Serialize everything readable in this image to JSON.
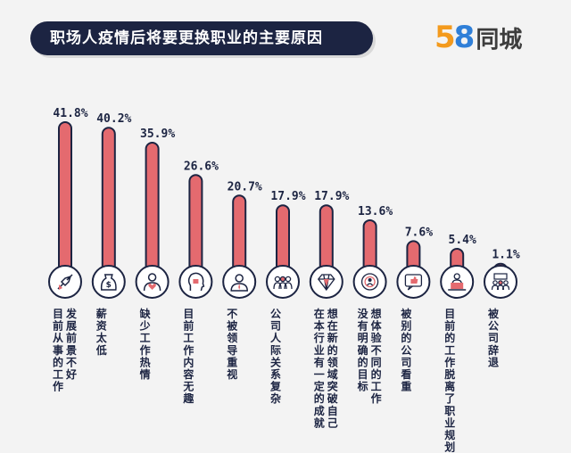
{
  "header": {
    "title": "职场人疫情后将要更换职业的主要原因"
  },
  "brand": {
    "logo_number_5": "5",
    "logo_number_8": "8",
    "logo_text": "同城"
  },
  "colors": {
    "bar": "#e46a6f",
    "outline": "#1c2442",
    "background": "#f3f3f3"
  },
  "chart_data": {
    "type": "bar",
    "title": "职场人疫情后将要更换职业的主要原因",
    "ylim": [
      0,
      45
    ],
    "unit": "%",
    "grid": false,
    "categories": [
      "发展前景不好",
      "目前从事的工作",
      "薪资太低",
      "缺少工作热情",
      "目前工作内容无趣",
      "不被领导重视",
      "公司人际关系复杂",
      "想在新的领域突破自己",
      "在本行业有一定的成就",
      "没有明确的目标",
      "想体验不同的工作",
      "被别的公司看重",
      "目前的工作脱离了职业规划",
      "被公司辞退"
    ],
    "bars": [
      {
        "value": 41.8,
        "label": "41.8%",
        "icon": "rocket-icon",
        "label_columns": [
          "发展前景不好",
          "目前从事的工作"
        ]
      },
      {
        "value": 40.2,
        "label": "40.2%",
        "icon": "money-bag-icon",
        "label_columns": [
          "薪资太低"
        ]
      },
      {
        "value": 35.9,
        "label": "35.9%",
        "icon": "person-heart-icon",
        "label_columns": [
          "缺少工作热情"
        ]
      },
      {
        "value": 26.6,
        "label": "26.6%",
        "icon": "head-lock-icon",
        "label_columns": [
          "目前工作内容无趣"
        ]
      },
      {
        "value": 20.7,
        "label": "20.7%",
        "icon": "leader-icon",
        "label_columns": [
          "不被领导重视"
        ]
      },
      {
        "value": 17.9,
        "label": "17.9%",
        "icon": "people-group-icon",
        "label_columns": [
          "公司人际关系复杂"
        ]
      },
      {
        "value": 17.9,
        "label": "17.9%",
        "icon": "diamond-icon",
        "label_columns": [
          "想在新的领域突破自己",
          "在本行业有一定的成就"
        ]
      },
      {
        "value": 13.6,
        "label": "13.6%",
        "icon": "target-person-icon",
        "label_columns": [
          "想体验不同的工作",
          "没有明确的目标"
        ]
      },
      {
        "value": 7.6,
        "label": "7.6%",
        "icon": "thumbs-up-icon",
        "label_columns": [
          "被别的公司看重"
        ]
      },
      {
        "value": 5.4,
        "label": "5.4%",
        "icon": "laptop-person-icon",
        "label_columns": [
          "目前的工作脱离了职业规划"
        ]
      },
      {
        "value": 1.1,
        "label": "1.1%",
        "icon": "meeting-group-icon",
        "label_columns": [
          "被公司辞退"
        ]
      }
    ]
  }
}
